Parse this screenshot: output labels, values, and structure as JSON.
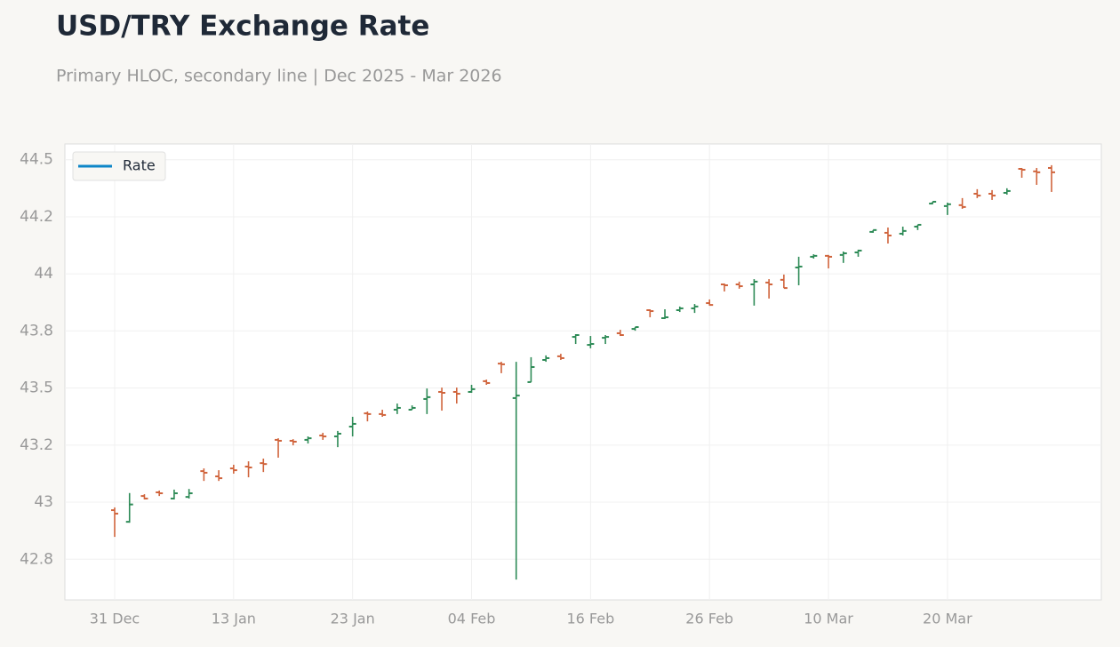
{
  "chart_data": {
    "type": "ohlc",
    "title": "USD/TRY Exchange Rate",
    "subtitle": "Primary HLOC, secondary line | Dec 2025 - Mar 2026",
    "categories": [
      "31 Dec",
      null,
      null,
      null,
      null,
      null,
      null,
      null,
      "13 Jan",
      null,
      null,
      null,
      null,
      null,
      null,
      null,
      "23 Jan",
      null,
      null,
      null,
      null,
      null,
      null,
      null,
      "04 Feb",
      null,
      null,
      null,
      null,
      null,
      null,
      null,
      "16 Feb",
      null,
      null,
      null,
      null,
      null,
      null,
      null,
      "26 Feb",
      null,
      null,
      null,
      null,
      null,
      null,
      null,
      "10 Mar",
      null,
      null,
      null,
      null,
      null,
      null,
      null,
      "20 Mar",
      null,
      null,
      null,
      null,
      null,
      null,
      null
    ],
    "series": [
      {
        "name": "Rate",
        "color": "#0e86c8",
        "open": [
          42.965,
          42.914,
          43.027,
          43.043,
          43.016,
          43.023,
          43.136,
          43.113,
          43.148,
          43.156,
          43.171,
          43.273,
          43.269,
          43.273,
          43.292,
          43.288,
          43.331,
          43.389,
          43.386,
          43.405,
          43.405,
          43.452,
          43.483,
          43.483,
          43.483,
          43.53,
          43.607,
          43.456,
          43.526,
          43.623,
          43.639,
          43.724,
          43.689,
          43.72,
          43.74,
          43.759,
          43.841,
          43.806,
          43.841,
          43.849,
          43.872,
          43.954,
          43.954,
          43.954,
          43.962,
          43.974,
          44.028,
          44.075,
          44.079,
          44.083,
          44.094,
          44.184,
          44.18,
          44.176,
          44.207,
          44.308,
          44.297,
          44.301,
          44.351,
          44.351,
          44.355,
          44.46,
          44.449,
          44.464
        ],
        "high": [
          42.977,
          43.04,
          43.035,
          43.051,
          43.055,
          43.058,
          43.148,
          43.14,
          43.164,
          43.179,
          43.191,
          43.28,
          43.276,
          43.288,
          43.304,
          43.312,
          43.374,
          43.397,
          43.405,
          43.432,
          43.424,
          43.498,
          43.502,
          43.502,
          43.514,
          43.537,
          43.615,
          43.615,
          43.635,
          43.643,
          43.65,
          43.736,
          43.728,
          43.732,
          43.755,
          43.767,
          43.845,
          43.845,
          43.857,
          43.868,
          43.888,
          43.958,
          43.966,
          43.977,
          43.977,
          43.997,
          44.075,
          44.086,
          44.083,
          44.098,
          44.106,
          44.192,
          44.203,
          44.207,
          44.215,
          44.316,
          44.312,
          44.332,
          44.371,
          44.367,
          44.375,
          44.464,
          44.464,
          44.476
        ],
        "low": [
          42.848,
          42.91,
          43.012,
          43.027,
          43.012,
          43.016,
          43.093,
          43.093,
          43.125,
          43.109,
          43.132,
          43.195,
          43.249,
          43.257,
          43.273,
          43.241,
          43.288,
          43.354,
          43.374,
          43.386,
          43.405,
          43.386,
          43.401,
          43.432,
          43.479,
          43.514,
          43.565,
          42.661,
          43.526,
          43.615,
          43.623,
          43.693,
          43.674,
          43.693,
          43.728,
          43.751,
          43.81,
          43.802,
          43.833,
          43.829,
          43.861,
          43.923,
          43.935,
          43.861,
          43.892,
          43.938,
          43.95,
          44.067,
          44.024,
          44.048,
          44.075,
          44.18,
          44.133,
          44.168,
          44.192,
          44.305,
          44.258,
          44.285,
          44.332,
          44.324,
          44.347,
          44.421,
          44.39,
          44.359
        ],
        "close": [
          42.95,
          42.99,
          43.016,
          43.039,
          43.039,
          43.039,
          43.129,
          43.105,
          43.14,
          43.152,
          43.167,
          43.269,
          43.265,
          43.28,
          43.288,
          43.3,
          43.343,
          43.386,
          43.382,
          43.413,
          43.413,
          43.46,
          43.479,
          43.475,
          43.495,
          43.522,
          43.604,
          43.467,
          43.592,
          43.631,
          43.631,
          43.732,
          43.693,
          43.724,
          43.732,
          43.767,
          43.837,
          43.81,
          43.849,
          43.857,
          43.864,
          43.95,
          43.946,
          43.966,
          43.954,
          43.938,
          44.032,
          44.079,
          44.075,
          44.09,
          44.102,
          44.192,
          44.168,
          44.188,
          44.215,
          44.316,
          44.305,
          44.293,
          44.343,
          44.343,
          44.363,
          44.456,
          44.445,
          44.445
        ]
      }
    ],
    "up_color": "#2e8b57",
    "down_color": "#d0643c",
    "ylim": [
      42.572,
      44.569
    ],
    "yticks": [
      {
        "value": 42.75,
        "label": "42.8"
      },
      43,
      {
        "value": 43.25,
        "label": "43.2"
      },
      43.5,
      {
        "value": 43.75,
        "label": "43.8"
      },
      44,
      {
        "value": 44.25,
        "label": "44.2"
      },
      44.5
    ],
    "grid": true,
    "legend": "upper left"
  }
}
